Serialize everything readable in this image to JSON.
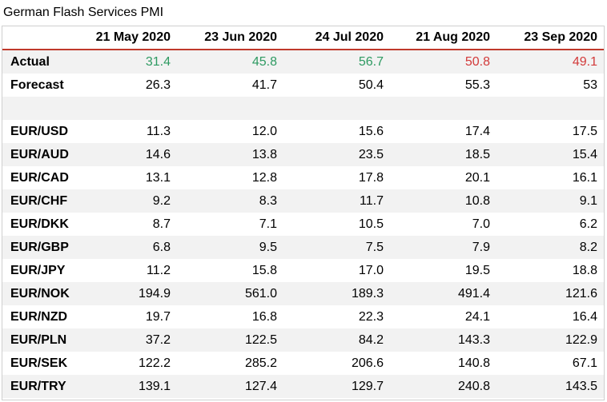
{
  "title": "German Flash Services PMI",
  "chart_data": {
    "type": "table",
    "columns": [
      "",
      "21 May 2020",
      "23 Jun 2020",
      "24 Jul 2020",
      "21 Aug 2020",
      "23 Sep 2020"
    ],
    "rows": [
      {
        "label": "Actual",
        "values": [
          "31.4",
          "45.8",
          "56.7",
          "50.8",
          "49.1"
        ],
        "colors": [
          "#2e9a62",
          "#2e9a62",
          "#2e9a62",
          "#d23a3a",
          "#d23a3a"
        ]
      },
      {
        "label": "Forecast",
        "values": [
          "26.3",
          "41.7",
          "50.4",
          "55.3",
          "53"
        ]
      },
      {
        "label": "",
        "values": [
          "",
          "",
          "",
          "",
          ""
        ]
      },
      {
        "label": "EUR/USD",
        "values": [
          "11.3",
          "12.0",
          "15.6",
          "17.4",
          "17.5"
        ]
      },
      {
        "label": "EUR/AUD",
        "values": [
          "14.6",
          "13.8",
          "23.5",
          "18.5",
          "15.4"
        ]
      },
      {
        "label": "EUR/CAD",
        "values": [
          "13.1",
          "12.8",
          "17.8",
          "20.1",
          "16.1"
        ]
      },
      {
        "label": "EUR/CHF",
        "values": [
          "9.2",
          "8.3",
          "11.7",
          "10.8",
          "9.1"
        ]
      },
      {
        "label": "EUR/DKK",
        "values": [
          "8.7",
          "7.1",
          "10.5",
          "7.0",
          "6.2"
        ]
      },
      {
        "label": "EUR/GBP",
        "values": [
          "6.8",
          "9.5",
          "7.5",
          "7.9",
          "8.2"
        ]
      },
      {
        "label": "EUR/JPY",
        "values": [
          "11.2",
          "15.8",
          "17.0",
          "19.5",
          "18.8"
        ]
      },
      {
        "label": "EUR/NOK",
        "values": [
          "194.9",
          "561.0",
          "189.3",
          "491.4",
          "121.6"
        ]
      },
      {
        "label": "EUR/NZD",
        "values": [
          "19.7",
          "16.8",
          "22.3",
          "24.1",
          "16.4"
        ]
      },
      {
        "label": "EUR/PLN",
        "values": [
          "37.2",
          "122.5",
          "84.2",
          "143.3",
          "122.9"
        ]
      },
      {
        "label": "EUR/SEK",
        "values": [
          "122.2",
          "285.2",
          "206.6",
          "140.8",
          "67.1"
        ]
      },
      {
        "label": "EUR/TRY",
        "values": [
          "139.1",
          "127.4",
          "129.7",
          "240.8",
          "143.5"
        ]
      }
    ]
  }
}
